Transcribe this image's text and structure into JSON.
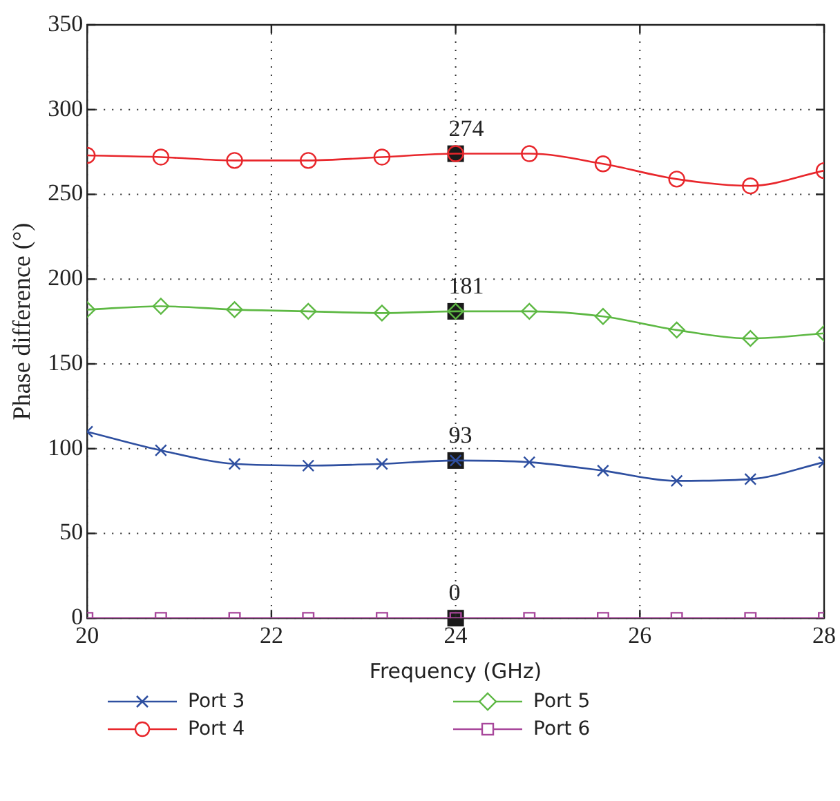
{
  "chart_data": {
    "type": "line",
    "xlabel": "Frequency (GHz)",
    "ylabel": "Phase difference (°)",
    "x": [
      20,
      20.8,
      21.6,
      22.4,
      23.2,
      24,
      24.8,
      25.6,
      26.4,
      27.2,
      28
    ],
    "xlim": [
      20,
      28
    ],
    "xticks": [
      20,
      22,
      24,
      26,
      28
    ],
    "ylim": [
      0,
      350
    ],
    "yticks": [
      0,
      50,
      100,
      150,
      200,
      250,
      300,
      350
    ],
    "grid": true,
    "legend": "bottom",
    "series": [
      {
        "name": "Port 3",
        "color": "#2e4fa0",
        "marker": "cross",
        "values": [
          110,
          99,
          91,
          90,
          91,
          93,
          92,
          87,
          81,
          82,
          92
        ],
        "value_labels": [
          null,
          null,
          null,
          null,
          null,
          "93",
          null,
          null,
          null,
          null,
          null
        ]
      },
      {
        "name": "Port 4",
        "color": "#e8262b",
        "marker": "circle",
        "values": [
          273,
          272,
          270,
          270,
          272,
          274,
          274,
          268,
          259,
          255,
          264
        ],
        "value_labels": [
          null,
          null,
          null,
          null,
          null,
          "274",
          null,
          null,
          null,
          null,
          null
        ]
      },
      {
        "name": "Port 5",
        "color": "#5db843",
        "marker": "diamond",
        "values": [
          182,
          184,
          182,
          181,
          180,
          181,
          181,
          178,
          170,
          165,
          168
        ],
        "value_labels": [
          null,
          null,
          null,
          null,
          null,
          "181",
          null,
          null,
          null,
          null,
          null
        ]
      },
      {
        "name": "Port 6",
        "color": "#a8479b",
        "marker": "square",
        "values": [
          0,
          0,
          0,
          0,
          0,
          0,
          0,
          0,
          0,
          0,
          0
        ],
        "value_labels": [
          null,
          null,
          null,
          null,
          null,
          "0",
          null,
          null,
          null,
          null,
          null
        ]
      }
    ]
  }
}
